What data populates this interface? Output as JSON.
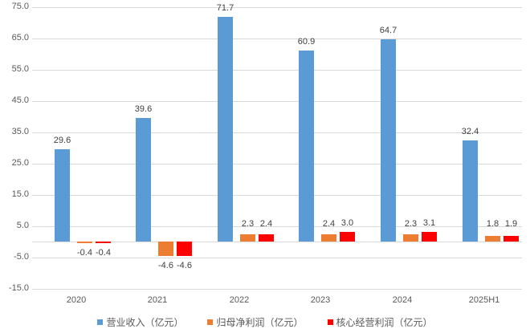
{
  "chart_data": {
    "type": "bar",
    "title": "",
    "xlabel": "",
    "ylabel": "",
    "categories": [
      "2020",
      "2021",
      "2022",
      "2023",
      "2024",
      "2025H1"
    ],
    "series": [
      {
        "name": "营业收入（亿元）",
        "color": "#5b9bd5",
        "values": [
          29.6,
          39.6,
          71.7,
          60.9,
          64.7,
          32.4
        ]
      },
      {
        "name": "归母净利润（亿元）",
        "color": "#ed7d31",
        "values": [
          -0.4,
          -4.6,
          2.3,
          2.4,
          2.3,
          1.8
        ]
      },
      {
        "name": "核心经营利润（亿元）",
        "color": "#ff0000",
        "values": [
          -0.4,
          -4.6,
          2.4,
          3.0,
          3.1,
          1.9
        ]
      }
    ],
    "yticks": [
      "75.0",
      "65.0",
      "55.0",
      "45.0",
      "35.0",
      "25.0",
      "15.0",
      "5.0",
      "-5.0",
      "-15.0"
    ],
    "ytick_values": [
      75,
      65,
      55,
      45,
      35,
      25,
      15,
      5,
      -5,
      -15
    ],
    "ylim": [
      -15,
      75
    ],
    "grid": true,
    "legend_position": "bottom"
  }
}
